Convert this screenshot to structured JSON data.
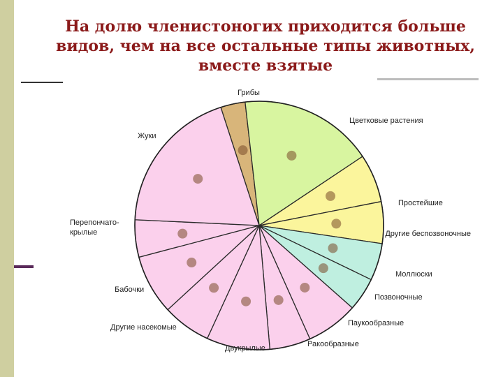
{
  "title": "На долю членистоногих приходится больше\nвидов, чем на все остальные типы животных,\nвместе взятые",
  "chart_data": {
    "type": "pie",
    "title": "",
    "slices": [
      {
        "label": "Грибы",
        "value": 3.3,
        "color": "#d8b57a"
      },
      {
        "label": "Цветковые растения",
        "value": 18.0,
        "color": "#d8f5a0"
      },
      {
        "label": "Простейшие",
        "value": 6.5,
        "color": "#fbf59c"
      },
      {
        "label": "Другие беспозвоночные",
        "value": 5.6,
        "color": "#fbf59c"
      },
      {
        "label": "Моллюски",
        "value": 5.0,
        "color": "#bfefe0"
      },
      {
        "label": "Позвоночные",
        "value": 4.5,
        "color": "#bfefe0"
      },
      {
        "label": "Паукообразные",
        "value": 7.0,
        "color": "#fbd0ec"
      },
      {
        "label": "Ракообразные",
        "value": 5.5,
        "color": "#fbd0ec"
      },
      {
        "label": "Двукрылые",
        "value": 8.5,
        "color": "#fbd0ec"
      },
      {
        "label": "Другие насекомые",
        "value": 6.5,
        "color": "#fbd0ec"
      },
      {
        "label": "Бабочки",
        "value": 8.0,
        "color": "#fbd0ec"
      },
      {
        "label": "Перепончато-\nкрылые",
        "value": 5.0,
        "color": "#fbd0ec"
      },
      {
        "label": "Жуки",
        "value": 19.9,
        "color": "#fbd0ec"
      }
    ]
  }
}
